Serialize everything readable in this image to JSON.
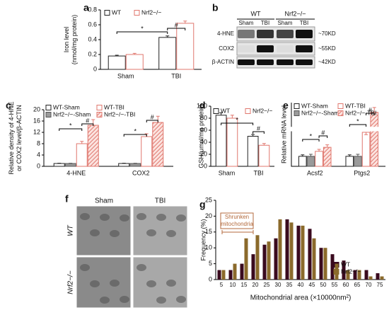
{
  "chart_data": [
    {
      "type": "bar",
      "panel": "a",
      "ylabel": [
        "Iron level",
        "(nmol/mg protein)"
      ],
      "categories": [
        "Sham",
        "TBI"
      ],
      "ylim": [
        0,
        0.8
      ],
      "yticks": [
        0,
        0.2,
        0.4,
        0.6,
        0.8
      ],
      "series": [
        {
          "name": "WT",
          "color": "#222222",
          "fill": "#ffffff",
          "values": [
            0.18,
            0.43
          ],
          "errors": [
            0.01,
            0.02
          ]
        },
        {
          "name": "Nrf2−/−",
          "color": "#e0776e",
          "fill": "#ffffff",
          "values": [
            0.2,
            0.62
          ],
          "errors": [
            0.015,
            0.03
          ]
        }
      ],
      "annotations": [
        "*",
        "#"
      ]
    },
    {
      "type": "bar",
      "panel": "c",
      "ylabel": [
        "Relative density of 4-HNE",
        "or COX2 level/β-ACTIN"
      ],
      "categories": [
        "4-HNE",
        "COX2"
      ],
      "ylim": [
        0,
        20
      ],
      "yticks": [
        0,
        4,
        8,
        12,
        16,
        20
      ],
      "series": [
        {
          "name": "WT-Sham",
          "color": "#222222",
          "fill": "#ffffff",
          "values": [
            1,
            1
          ],
          "errors": [
            0.1,
            0.1
          ]
        },
        {
          "name": "Nrf2−/−-Sham",
          "color": "#555555",
          "fill": "#9a9a9a",
          "values": [
            1,
            1
          ],
          "errors": [
            0.1,
            0.1
          ]
        },
        {
          "name": "WT-TBI",
          "color": "#e0776e",
          "fill": "#ffffff",
          "values": [
            8,
            10.5
          ],
          "errors": [
            0.8,
            1
          ]
        },
        {
          "name": "Nrf2−/−-TBI",
          "color": "#e0776e",
          "fill": "hatch",
          "values": [
            14.5,
            15.5
          ],
          "errors": [
            2,
            2.2
          ]
        }
      ],
      "annotations": [
        "*",
        "#",
        "*",
        "#"
      ]
    },
    {
      "type": "bar",
      "panel": "d",
      "ylabel": [
        "GSH(μmol/mg protein)"
      ],
      "categories": [
        "Sham",
        "TBI"
      ],
      "ylim": [
        0,
        100
      ],
      "yticks": [
        0,
        20,
        40,
        60,
        80,
        100
      ],
      "series": [
        {
          "name": "WT",
          "color": "#222222",
          "fill": "#ffffff",
          "values": [
            85,
            50
          ],
          "errors": [
            4,
            3
          ]
        },
        {
          "name": "Nrf2−/−",
          "color": "#e0776e",
          "fill": "#ffffff",
          "values": [
            80,
            35
          ],
          "errors": [
            5,
            3
          ]
        }
      ],
      "annotations": [
        "*",
        "#"
      ]
    },
    {
      "type": "bar",
      "panel": "e",
      "ylabel": [
        "Relative mRNA level"
      ],
      "categories": [
        "Acsf2",
        "Ptgs2"
      ],
      "ylim": [
        0,
        30
      ],
      "ybreak": [
        3.5,
        10
      ],
      "series": [
        {
          "name": "WT-Sham",
          "color": "#222222",
          "fill": "#ffffff",
          "values": [
            1,
            1
          ],
          "errors": [
            0.15,
            0.15
          ]
        },
        {
          "name": "Nrf2−/−-Sham",
          "color": "#555555",
          "fill": "#9a9a9a",
          "values": [
            1,
            1
          ],
          "errors": [
            0.2,
            0.2
          ]
        },
        {
          "name": "WT-TBI",
          "color": "#e0776e",
          "fill": "#ffffff",
          "values": [
            1.5,
            3.4
          ],
          "errors": [
            0.2,
            0.15
          ]
        },
        {
          "name": "Nrf2−/−-TBI",
          "color": "#e0776e",
          "fill": "hatch",
          "values": [
            1.9,
            22
          ],
          "errors": [
            0.25,
            4
          ]
        }
      ],
      "annotations": [
        "*",
        "#",
        "*",
        "#"
      ]
    },
    {
      "type": "bar",
      "panel": "g",
      "ylabel": [
        "Frequency (%)"
      ],
      "xlabel": "Mitochondrial area (×10000nm²)",
      "categories": [
        "5",
        "10",
        "15",
        "20",
        "25",
        "30",
        "35",
        "40",
        "45",
        "50",
        "55",
        "60",
        "65",
        "70",
        "75"
      ],
      "ylim": [
        0,
        25
      ],
      "yticks": [
        0,
        5,
        10,
        15,
        20,
        25
      ],
      "series": [
        {
          "name": "WT",
          "color": "#3a0a1e",
          "fill": "#3a0a1e",
          "values": [
            3,
            3,
            5,
            8,
            11,
            13,
            19,
            17,
            16,
            10,
            8,
            6,
            3,
            3,
            2
          ]
        },
        {
          "name": "Nrf2−/−",
          "color": "#8b6a2b",
          "fill": "#8b6a2b",
          "values": [
            3,
            5,
            13,
            14,
            12,
            19,
            18,
            17,
            13,
            10,
            5,
            3,
            3,
            1,
            1
          ]
        }
      ],
      "annotations": [
        "Shrunken",
        "mitochondria"
      ]
    }
  ],
  "blot": {
    "panel": "b",
    "genotypes": [
      "WT",
      "Nrf2−/−"
    ],
    "lanes": [
      "Sham",
      "TBI",
      "Sham",
      "TBI"
    ],
    "proteins": [
      "4-HNE",
      "COX2",
      "β-ACTIN"
    ],
    "sizes": [
      "~70KD",
      "~55KD",
      "~42KD"
    ]
  },
  "micrograph": {
    "panel": "f",
    "columns": [
      "Sham",
      "TBI"
    ],
    "rows": [
      "WT",
      "Nrf2−/−"
    ]
  }
}
